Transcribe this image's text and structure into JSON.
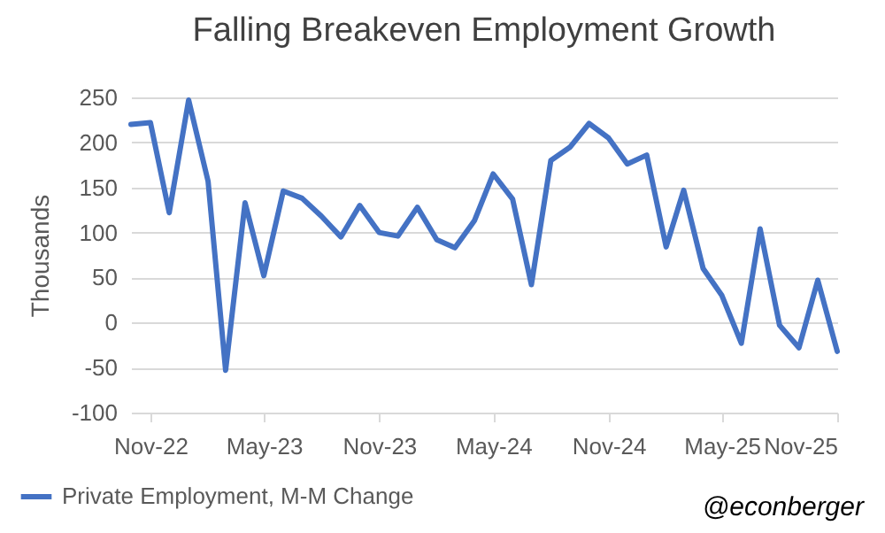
{
  "chart_data": {
    "type": "line",
    "title": "Falling Breakeven Employment Growth",
    "ylabel": "Thousands",
    "x": [
      "2022-10",
      "2022-11",
      "2022-12",
      "2023-01",
      "2023-02",
      "2023-03",
      "2023-04",
      "2023-05",
      "2023-06",
      "2023-07",
      "2023-08",
      "2023-09",
      "2023-10",
      "2023-11",
      "2023-12",
      "2024-01",
      "2024-02",
      "2024-03",
      "2024-04",
      "2024-05",
      "2024-06",
      "2024-07",
      "2024-08",
      "2024-09",
      "2024-10",
      "2024-11",
      "2024-12",
      "2025-01",
      "2025-02",
      "2025-03",
      "2025-04",
      "2025-05",
      "2025-06",
      "2025-07",
      "2025-08",
      "2025-09",
      "2025-10",
      "2025-11"
    ],
    "series": [
      {
        "name": "Private Employment, M-M Change",
        "color": "#4472c4",
        "values": [
          220,
          222,
          122,
          247,
          157,
          -53,
          133,
          52,
          146,
          138,
          118,
          95,
          130,
          100,
          96,
          128,
          92,
          83,
          113,
          165,
          137,
          42,
          180,
          195,
          221,
          205,
          176,
          186,
          84,
          147,
          60,
          30,
          -23,
          104,
          -3,
          -28,
          47,
          -32
        ]
      }
    ],
    "xlim": [
      "2022-10",
      "2025-11"
    ],
    "xticks": [
      {
        "value": "2022-11",
        "label": "Nov-22"
      },
      {
        "value": "2023-05",
        "label": "May-23"
      },
      {
        "value": "2023-11",
        "label": "Nov-23"
      },
      {
        "value": "2024-05",
        "label": "May-24"
      },
      {
        "value": "2024-11",
        "label": "Nov-24"
      },
      {
        "value": "2025-05",
        "label": "May-25"
      },
      {
        "value": "2025-11",
        "label": "Nov-25"
      }
    ],
    "ylim": [
      -100,
      250
    ],
    "yticks": [
      -100,
      -50,
      0,
      50,
      100,
      150,
      200,
      250
    ],
    "grid": "y",
    "legend": "bottom",
    "line_style": "solid",
    "marker": "none",
    "annotations": [
      "@econberger"
    ]
  }
}
